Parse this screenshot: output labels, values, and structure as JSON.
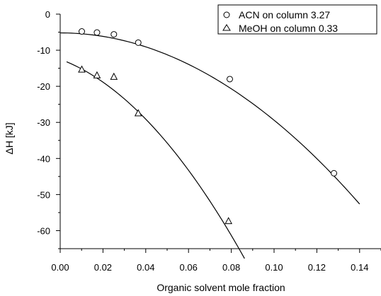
{
  "chart_data": {
    "type": "scatter",
    "xlabel": "Organic solvent mole fraction",
    "ylabel": "ΔH [kJ]",
    "xlim": [
      0.0,
      0.15
    ],
    "ylim": [
      -65,
      0
    ],
    "x_ticks": [
      "0.00",
      "0.02",
      "0.04",
      "0.06",
      "0.08",
      "0.10",
      "0.12",
      "0.14"
    ],
    "y_ticks": [
      "0",
      "-10",
      "-20",
      "-30",
      "-40",
      "-50",
      "-60"
    ],
    "grid": false,
    "legend_position": "top-right",
    "series": [
      {
        "name": "ACN on column 3.27",
        "marker": "circle",
        "x": [
          0.0101,
          0.0172,
          0.0251,
          0.0365,
          0.0793,
          0.128
        ],
        "y": [
          -4.8,
          -5.1,
          -5.6,
          -7.9,
          -18.0,
          -44.1
        ],
        "fit_x": [
          0.0,
          0.14
        ],
        "fit_coeffs": [
          -5.2,
          0.0,
          -2420
        ]
      },
      {
        "name": "MeOH on column 0.33",
        "marker": "triangle",
        "x": [
          0.0101,
          0.0172,
          0.0251,
          0.0365,
          0.0787
        ],
        "y": [
          -15.4,
          -17.0,
          -17.4,
          -27.5,
          -57.4
        ],
        "fit_x": [
          0.003,
          0.0862
        ],
        "fit_coeffs": [
          -12.5,
          -220,
          -4880
        ]
      }
    ]
  }
}
